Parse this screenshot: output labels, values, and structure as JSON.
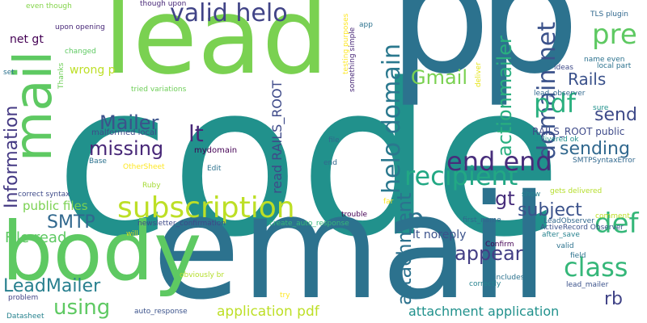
{
  "words": [
    {
      "text": "code",
      "color": "#21918c"
    },
    {
      "text": "email",
      "color": "#2c728e"
    },
    {
      "text": "p",
      "color": "#2c728e"
    },
    {
      "text": "p",
      "color": "#2c728e"
    },
    {
      "text": "lead",
      "color": "#7ad151"
    },
    {
      "text": "body",
      "color": "#5ec962"
    },
    {
      "text": "mail",
      "color": "#5ec962"
    },
    {
      "text": "subscription",
      "color": "#bddf26"
    },
    {
      "text": "recipient",
      "color": "#22a884"
    },
    {
      "text": "valid helo",
      "color": "#414487"
    },
    {
      "text": "helo domain",
      "color": "#2a788e"
    },
    {
      "text": "domain net",
      "color": "#3b528b"
    },
    {
      "text": "end end",
      "color": "#472d7b"
    },
    {
      "text": "pre",
      "color": "#5ec962"
    },
    {
      "text": "pdf",
      "color": "#2ab07f"
    },
    {
      "text": "Gmail",
      "color": "#7ad151"
    },
    {
      "text": "Rails",
      "color": "#3b528b"
    },
    {
      "text": "actionmailer",
      "color": "#29af7f"
    },
    {
      "text": "send",
      "color": "#3e4a89"
    },
    {
      "text": "sending",
      "color": "#31688e"
    },
    {
      "text": "def",
      "color": "#35b779"
    },
    {
      "text": "class",
      "color": "#35b779"
    },
    {
      "text": "gt",
      "color": "#472d7b"
    },
    {
      "text": "subject",
      "color": "#3b528b"
    },
    {
      "text": "appear",
      "color": "#433e85"
    },
    {
      "text": "attachment",
      "color": "#2c728e"
    },
    {
      "text": "p",
      "color": "#2c728e"
    },
    {
      "text": "rb",
      "color": "#414487"
    },
    {
      "text": "attachment application",
      "color": "#21918c"
    },
    {
      "text": "application pdf",
      "color": "#bddf26"
    },
    {
      "text": "using",
      "color": "#5ec962"
    },
    {
      "text": "LeadMailer",
      "color": "#277f8e"
    },
    {
      "text": "SMTP",
      "color": "#31688e"
    },
    {
      "text": "File read",
      "color": "#5ec962"
    },
    {
      "text": "public files",
      "color": "#7ad151"
    },
    {
      "text": "Information",
      "color": "#443983"
    },
    {
      "text": "missing",
      "color": "#482878"
    },
    {
      "text": "Mailer",
      "color": "#3b528b"
    },
    {
      "text": "lt",
      "color": "#482878"
    },
    {
      "text": "read RAILS_ROOT",
      "color": "#3e4a89"
    },
    {
      "text": "wrong p",
      "color": "#bddf26"
    },
    {
      "text": "net gt",
      "color": "#440154"
    },
    {
      "text": "lt noreply",
      "color": "#3b528b"
    },
    {
      "text": "RAILS_ROOT public",
      "color": "#3e4a89"
    },
    {
      "text": "delivered ok",
      "color": "#21918c"
    },
    {
      "text": "even though",
      "color": "#84d44b"
    },
    {
      "text": "though upon",
      "color": "#482878"
    },
    {
      "text": "upon opening",
      "color": "#482878"
    },
    {
      "text": "changed",
      "color": "#5ec962"
    },
    {
      "text": "Thanks",
      "color": "#6ece58"
    },
    {
      "text": "set",
      "color": "#2c728e"
    },
    {
      "text": "tried variations",
      "color": "#6ece58"
    },
    {
      "text": "malformed local",
      "color": "#3e4a89"
    },
    {
      "text": "mydomain",
      "color": "#440154"
    },
    {
      "text": "Base",
      "color": "#2c728e"
    },
    {
      "text": "OtherSheet",
      "color": "#fde725"
    },
    {
      "text": "Edit",
      "color": "#2c728e"
    },
    {
      "text": "Ruby",
      "color": "#a5db36"
    },
    {
      "text": "file",
      "color": "#31688e"
    },
    {
      "text": "end",
      "color": "#31688e"
    },
    {
      "text": "correct syntax",
      "color": "#3e4a89"
    },
    {
      "text": "newsletter_confirmation",
      "color": "#3e4a89"
    },
    {
      "text": "create_auto_response",
      "color": "#35b779"
    },
    {
      "text": "trouble",
      "color": "#440154"
    },
    {
      "text": "will",
      "color": "#d2e21b"
    },
    {
      "text": "obviously br",
      "color": "#b5de2b"
    },
    {
      "text": "problem",
      "color": "#414487"
    },
    {
      "text": "Datasheet",
      "color": "#26828e"
    },
    {
      "text": "auto_response",
      "color": "#3b528b"
    },
    {
      "text": "try",
      "color": "#fde725"
    },
    {
      "text": "testing purposes",
      "color": "#fde725"
    },
    {
      "text": "something simple",
      "color": "#482878"
    },
    {
      "text": "app",
      "color": "#2c728e"
    },
    {
      "text": "deliver",
      "color": "#e5e419"
    },
    {
      "text": "TLS plugin",
      "color": "#31688e"
    },
    {
      "text": "name even",
      "color": "#2c728e"
    },
    {
      "text": "local part",
      "color": "#2c728e"
    },
    {
      "text": "ideas",
      "color": "#3e4a89"
    },
    {
      "text": "lead_observer",
      "color": "#31688e"
    },
    {
      "text": "sure",
      "color": "#21918c"
    },
    {
      "text": "SMTPSyntaxError",
      "color": "#31688e"
    },
    {
      "text": "gets delivered",
      "color": "#b5de2b"
    },
    {
      "text": "show",
      "color": "#26828e"
    },
    {
      "text": "comment",
      "color": "#bddf26"
    },
    {
      "text": "far",
      "color": "#fde725"
    },
    {
      "text": "first_name",
      "color": "#31688e"
    },
    {
      "text": "LeadObserver",
      "color": "#31688e"
    },
    {
      "text": "ActiveRecord Observer",
      "color": "#3b528b"
    },
    {
      "text": "after_save",
      "color": "#26828e"
    },
    {
      "text": "field",
      "color": "#2c728e"
    },
    {
      "text": "Confirm",
      "color": "#440154"
    },
    {
      "text": "valid",
      "color": "#2c728e"
    },
    {
      "text": "includes",
      "color": "#2c728e"
    },
    {
      "text": "correctly",
      "color": "#26828e"
    },
    {
      "text": "lead_mailer",
      "color": "#3b528b"
    }
  ]
}
